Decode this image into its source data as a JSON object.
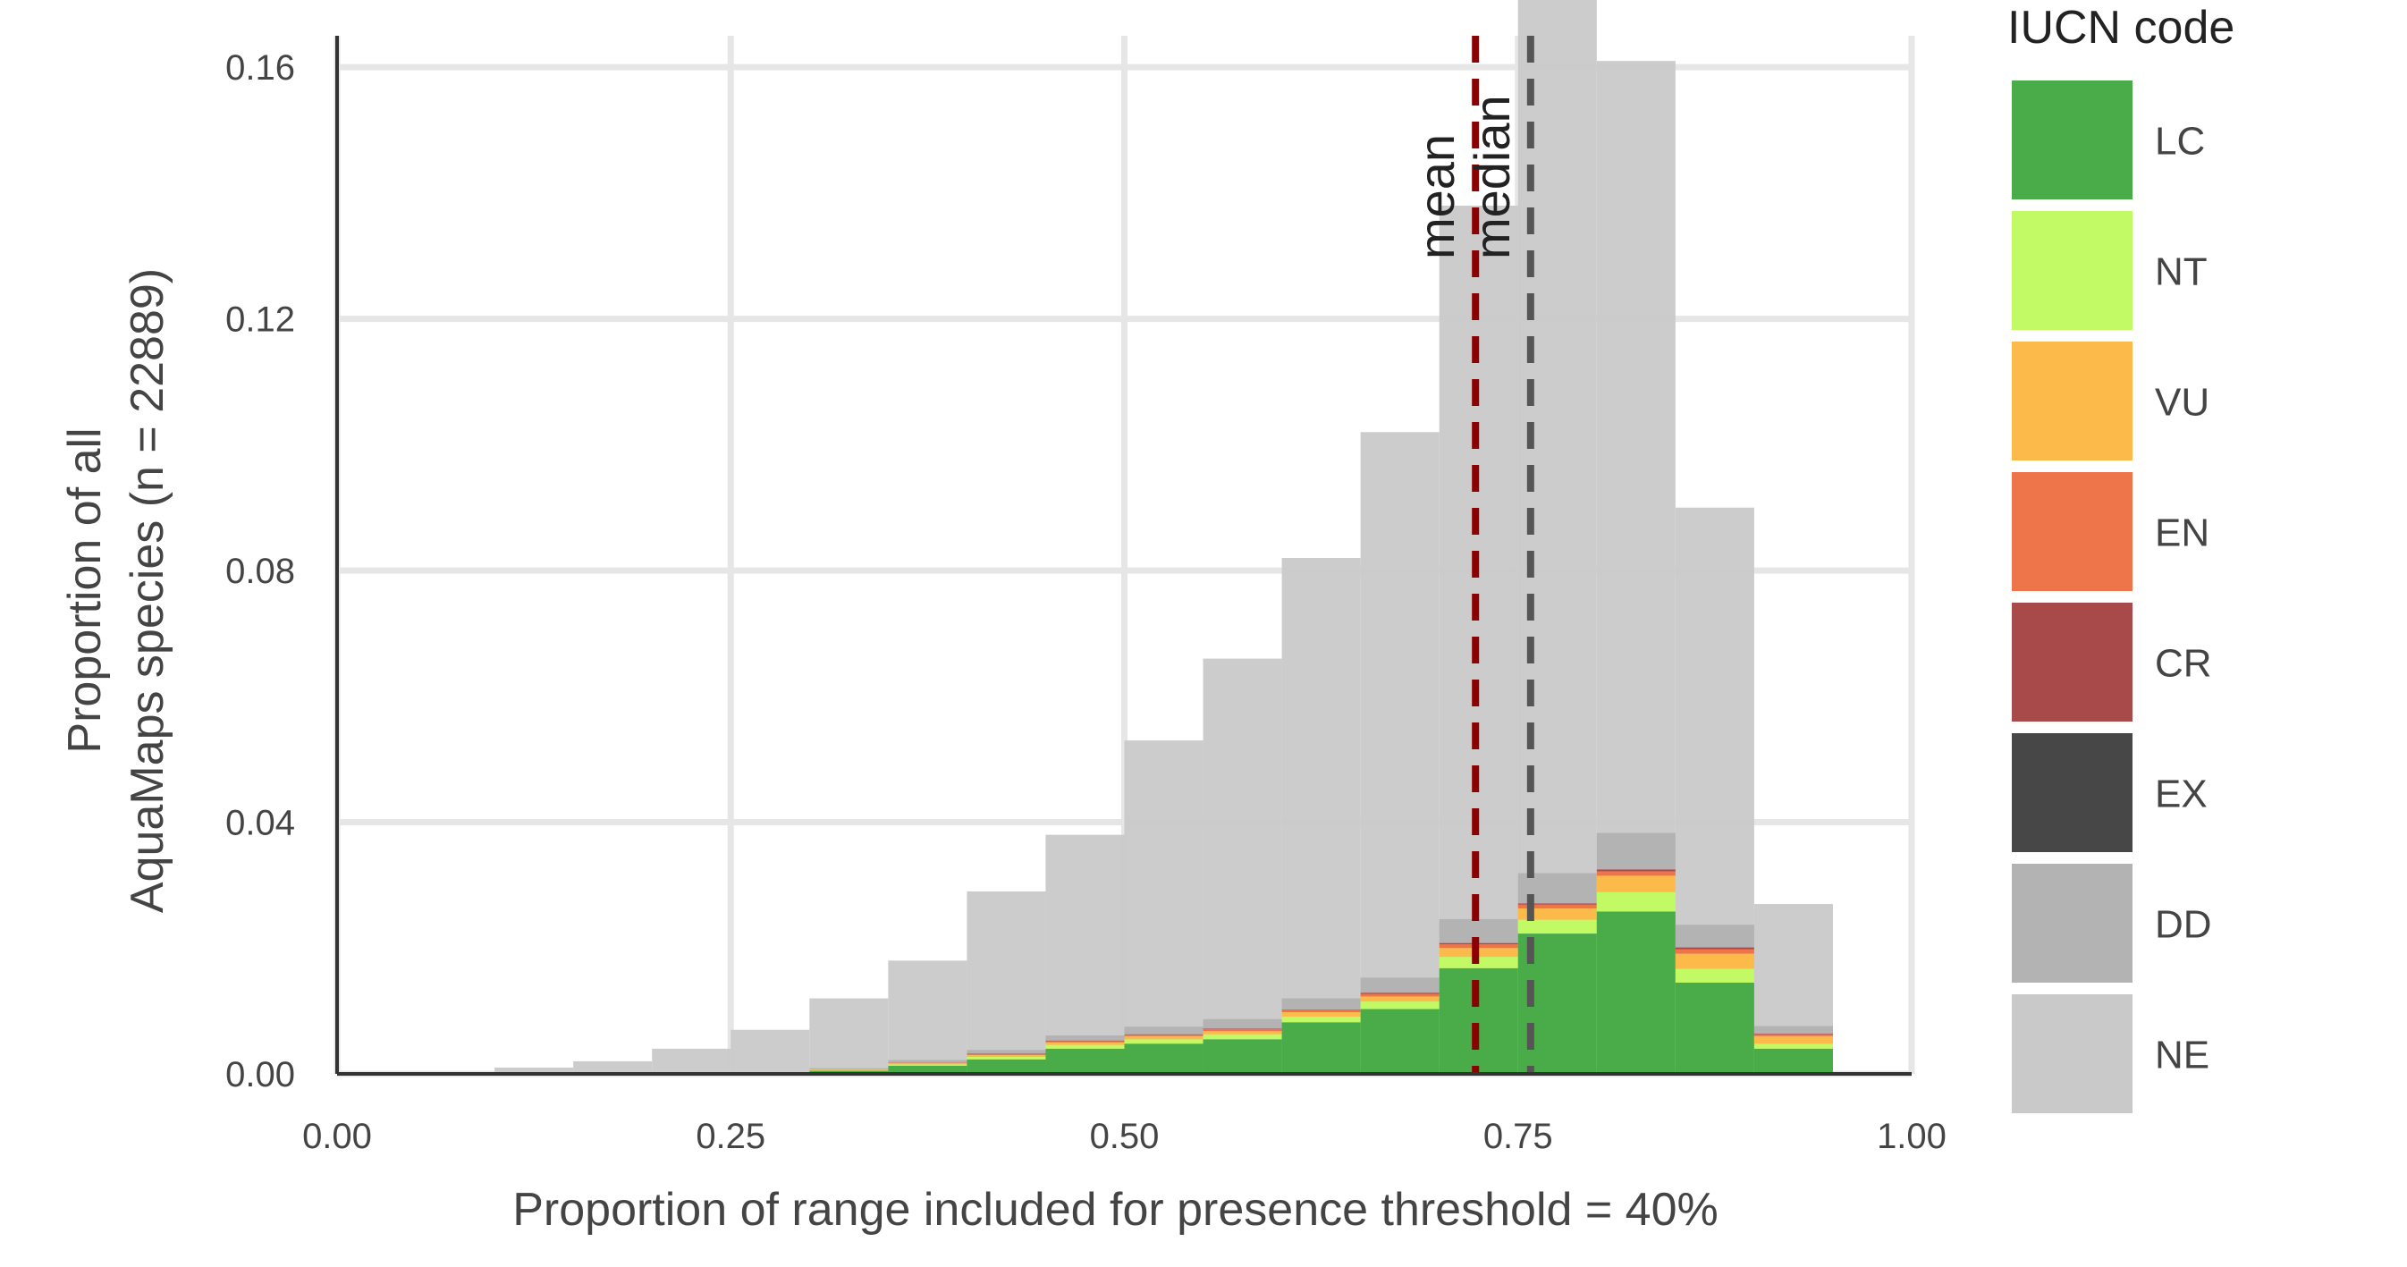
{
  "chart_data": {
    "type": "bar",
    "stacked": true,
    "xlabel": "Proportion of range included for presence threshold = 40%",
    "ylabel_lines": [
      "Proportion of all",
      "AquaMaps species (n = 22889)"
    ],
    "xlim": [
      0,
      1
    ],
    "ylim": [
      0,
      0.165
    ],
    "x_ticks": [
      0,
      0.25,
      0.5,
      0.75,
      1
    ],
    "x_tick_labels": [
      "0.00",
      "0.25",
      "0.50",
      "0.75",
      "1.00"
    ],
    "y_ticks": [
      0,
      0.04,
      0.08,
      0.12,
      0.16
    ],
    "y_tick_labels": [
      "0.00",
      "0.04",
      "0.08",
      "0.12",
      "0.16"
    ],
    "grid": true,
    "bin_width": 0.05,
    "bin_starts": [
      0.0,
      0.05,
      0.1,
      0.15,
      0.2,
      0.25,
      0.3,
      0.35,
      0.4,
      0.45,
      0.5,
      0.55,
      0.6,
      0.65,
      0.7,
      0.75,
      0.8,
      0.85,
      0.9,
      0.95
    ],
    "background_total": [
      0,
      0,
      0.001,
      0.002,
      0.004,
      0.007,
      0.012,
      0.018,
      0.029,
      0.038,
      0.053,
      0.066,
      0.082,
      0.102,
      0.138,
      0.171,
      0.161,
      0.09,
      0.027,
      0
    ],
    "legend_title": "IUCN code",
    "legend_position": "right",
    "series": [
      {
        "name": "LC",
        "color": "#4aab49",
        "values": [
          0,
          0,
          0,
          0,
          0,
          0,
          0.0005,
          0.0013,
          0.0023,
          0.004,
          0.0048,
          0.0055,
          0.0082,
          0.0103,
          0.0168,
          0.0223,
          0.0258,
          0.0145,
          0.004,
          0
        ]
      },
      {
        "name": "NT",
        "color": "#c1fa65",
        "values": [
          0,
          0,
          0,
          0,
          0,
          0,
          0.0001,
          0.0002,
          0.0004,
          0.0006,
          0.0007,
          0.0008,
          0.0009,
          0.0012,
          0.0018,
          0.0022,
          0.0031,
          0.0022,
          0.0008,
          0
        ]
      },
      {
        "name": "VU",
        "color": "#fbba4a",
        "values": [
          0,
          0,
          0,
          0,
          0,
          0,
          0.0001,
          0.0002,
          0.0003,
          0.0004,
          0.0005,
          0.0005,
          0.0007,
          0.0008,
          0.0014,
          0.0018,
          0.0026,
          0.0024,
          0.0012,
          0
        ]
      },
      {
        "name": "EN",
        "color": "#ee754a",
        "values": [
          0,
          0,
          0,
          0,
          0,
          0,
          0,
          0.0001,
          0.0001,
          0.0002,
          0.0002,
          0.0003,
          0.0003,
          0.0004,
          0.0006,
          0.0006,
          0.0007,
          0.0007,
          0.0003,
          0
        ]
      },
      {
        "name": "CR",
        "color": "#a84a4a",
        "values": [
          0,
          0,
          0,
          0,
          0,
          0,
          0,
          0,
          0.0001,
          0.0001,
          0.0001,
          0.0001,
          0.0001,
          0.0002,
          0.0002,
          0.0002,
          0.0003,
          0.0003,
          0.0001,
          0
        ]
      },
      {
        "name": "EX",
        "color": "#474747",
        "values": [
          0,
          0,
          0,
          0,
          0,
          0,
          0,
          0,
          0,
          0,
          0,
          0,
          0,
          0,
          0,
          0,
          0,
          0,
          0,
          0
        ]
      },
      {
        "name": "DD",
        "color": "#b3b3b3",
        "values": [
          0,
          0,
          0,
          0,
          0,
          0,
          0.0002,
          0.0004,
          0.0006,
          0.0008,
          0.0012,
          0.0015,
          0.0018,
          0.0024,
          0.0038,
          0.0048,
          0.0058,
          0.0036,
          0.0012,
          0
        ]
      },
      {
        "name": "NE",
        "color": "#c9c9c9",
        "values": []
      }
    ],
    "reference_lines": [
      {
        "label": "mean",
        "x": 0.723,
        "color": "#8b0000"
      },
      {
        "label": "median",
        "x": 0.758,
        "color": "#555555"
      }
    ]
  }
}
